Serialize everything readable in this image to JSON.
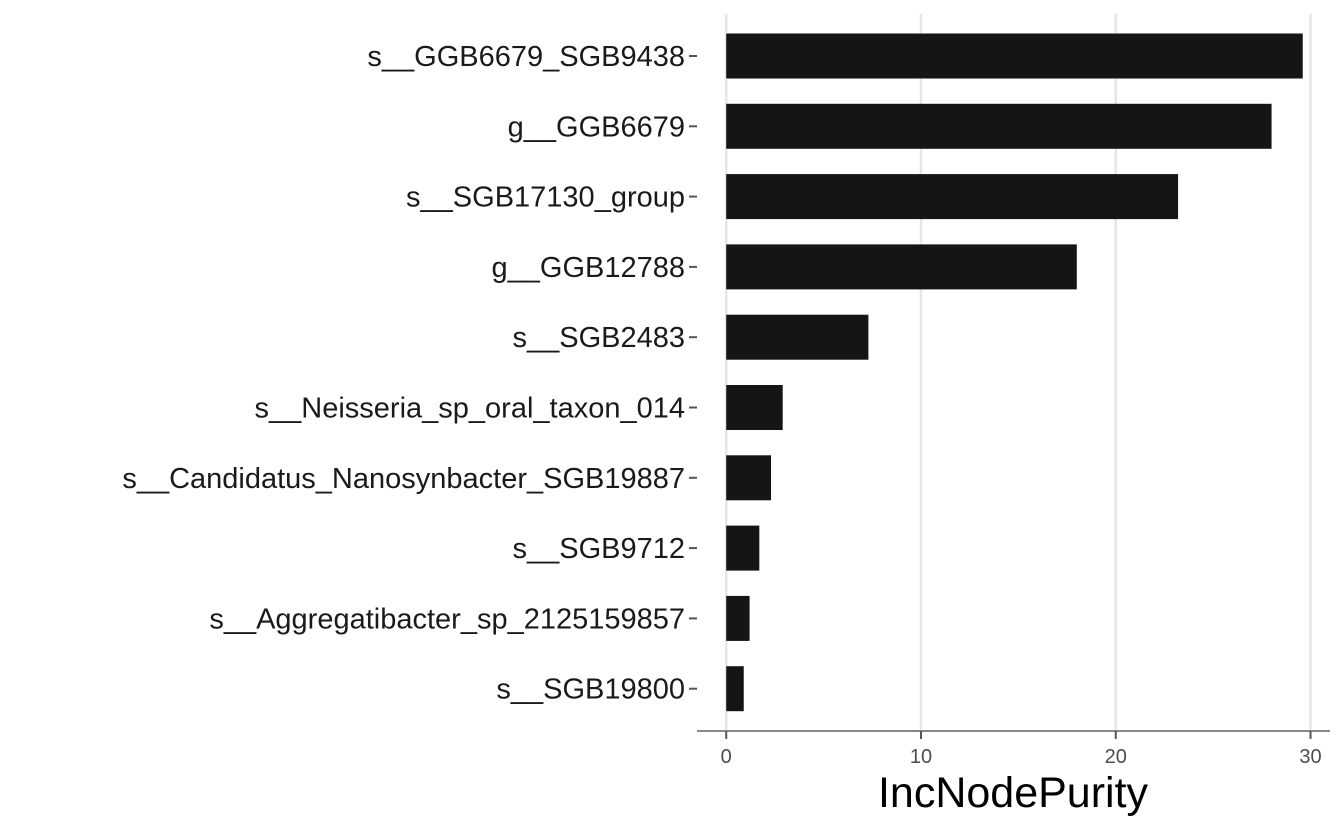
{
  "chart_data": {
    "type": "bar",
    "orientation": "horizontal",
    "categories": [
      "s__GGB6679_SGB9438",
      "g__GGB6679",
      "s__SGB17130_group",
      "g__GGB12788",
      "s__SGB2483",
      "s__Neisseria_sp_oral_taxon_014",
      "s__Candidatus_Nanosynbacter_SGB19887",
      "s__SGB9712",
      "s__Aggregatibacter_sp_2125159857",
      "s__SGB19800"
    ],
    "values": [
      29.6,
      28.0,
      23.2,
      18.0,
      7.3,
      2.9,
      2.3,
      1.7,
      1.2,
      0.9
    ],
    "xlabel": "IncNodePurity",
    "ylabel": "",
    "xlim": [
      -1.5,
      31
    ],
    "xticks": [
      0,
      10,
      20,
      30
    ],
    "grid": "vertical-major",
    "bar_color": "#151515",
    "legend": "none"
  }
}
